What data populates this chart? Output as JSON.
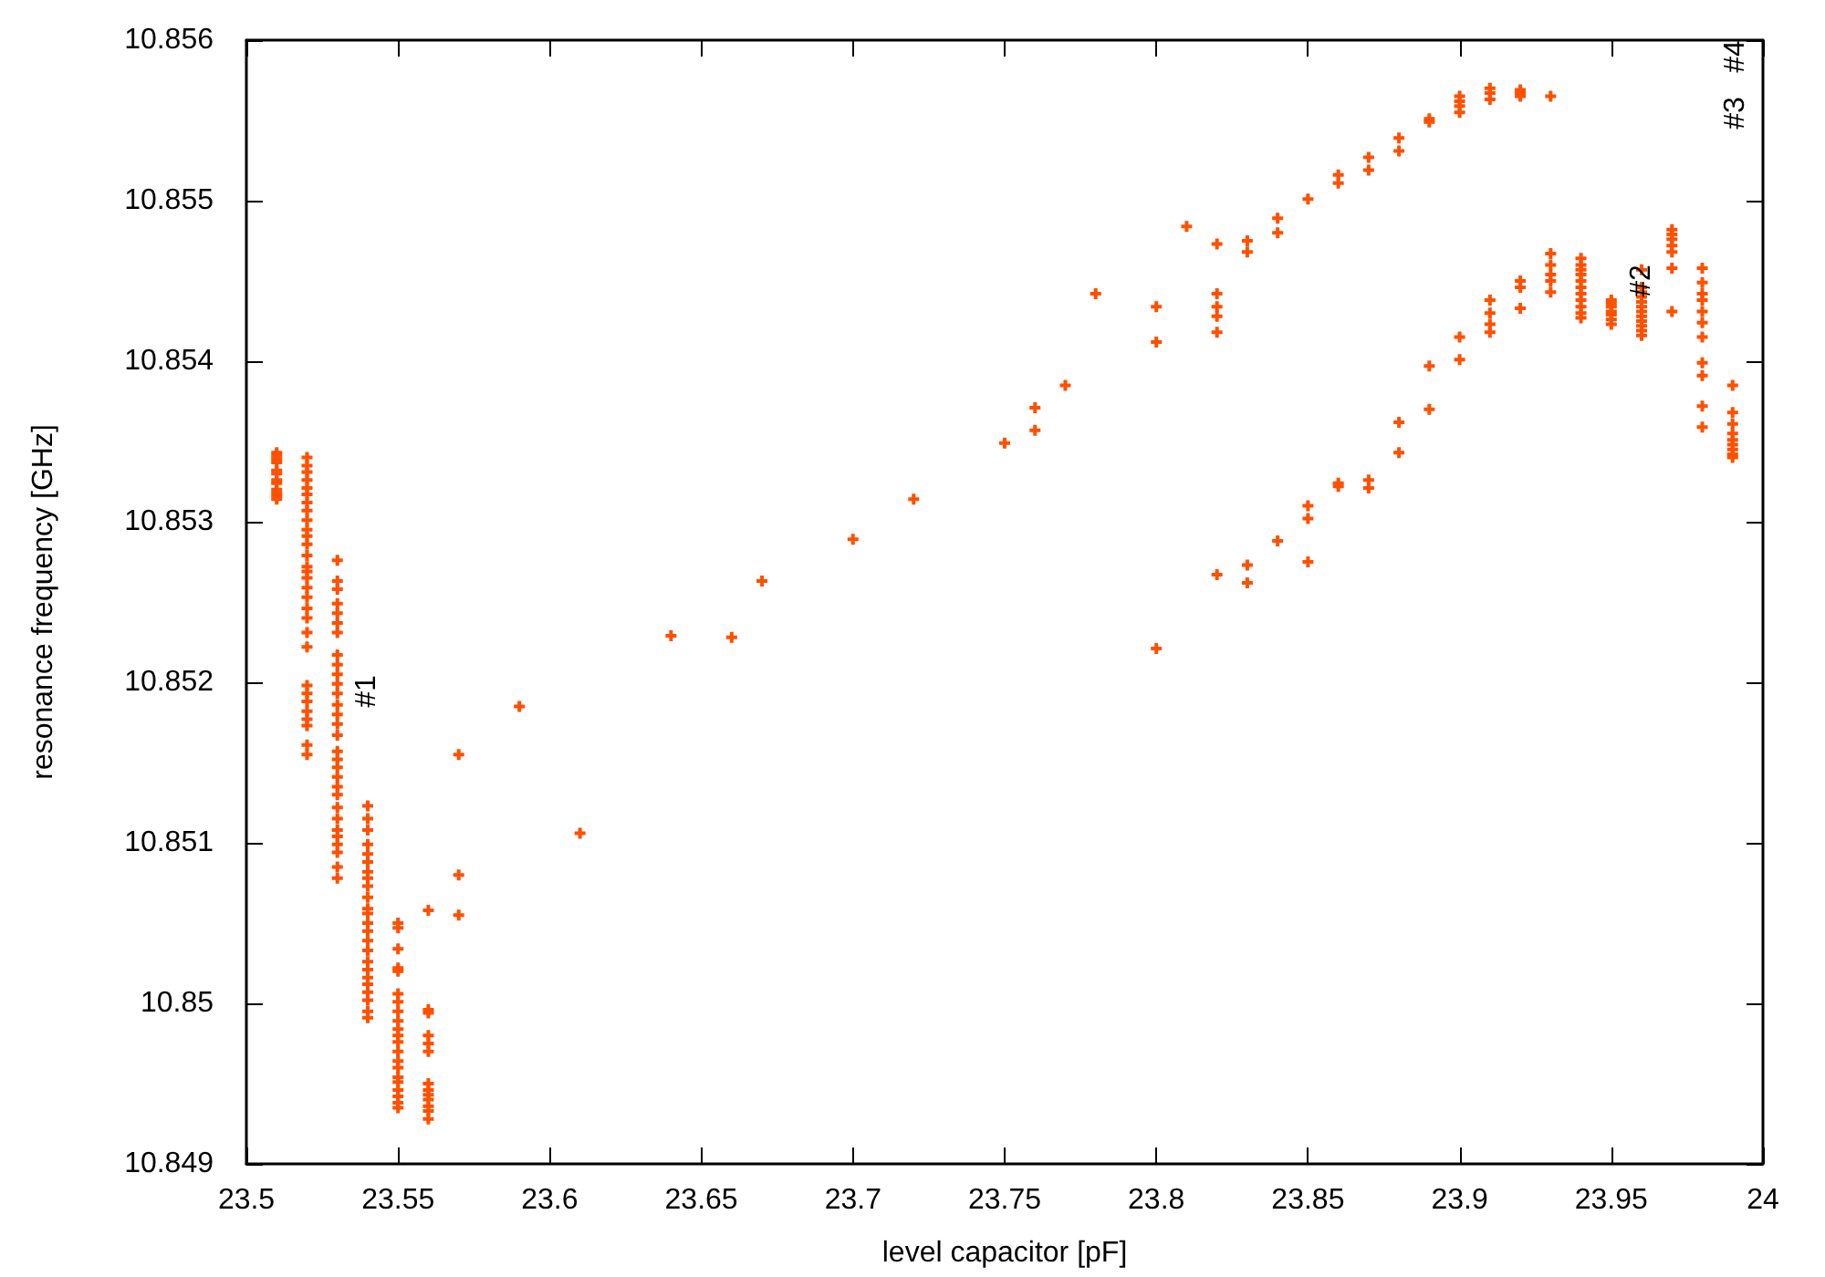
{
  "chart_data": {
    "type": "scatter",
    "xlabel": "level capacitor [pF]",
    "ylabel": "resonance frequency [GHz]",
    "color": "#ff5000",
    "marker": "cross",
    "xlim": [
      23.5,
      24
    ],
    "xticks": [
      23.5,
      23.55,
      23.6,
      23.65,
      23.7,
      23.75,
      23.8,
      23.85,
      23.9,
      23.95,
      24
    ],
    "ylim": [
      10.849,
      10.856
    ],
    "yticks": [
      10.849,
      10.85,
      10.851,
      10.852,
      10.853,
      10.854,
      10.855,
      10.856
    ],
    "annotations": [
      "#1",
      {
        "text": "#2",
        "x": 23.96,
        "y": 10.8545
      },
      "#3",
      "#4"
    ],
    "x": [
      23.51,
      23.51,
      23.51,
      23.51,
      23.51,
      23.51,
      23.51,
      23.51,
      23.51,
      23.51,
      23.51,
      23.51,
      23.52,
      23.52,
      23.52,
      23.52,
      23.52,
      23.52,
      23.52,
      23.52,
      23.52,
      23.52,
      23.52,
      23.52,
      23.52,
      23.52,
      23.52,
      23.52,
      23.52,
      23.52,
      23.52,
      23.52,
      23.52,
      23.52,
      23.52,
      23.52,
      23.52,
      23.52,
      23.52,
      23.52,
      23.52,
      23.52,
      23.53,
      23.53,
      23.53,
      23.53,
      23.53,
      23.53,
      23.53,
      23.53,
      23.53,
      23.53,
      23.53,
      23.53,
      23.53,
      23.53,
      23.53,
      23.53,
      23.53,
      23.53,
      23.53,
      23.53,
      23.53,
      23.53,
      23.53,
      23.53,
      23.53,
      23.53,
      23.53,
      23.53,
      23.53,
      23.53,
      23.54,
      23.54,
      23.54,
      23.54,
      23.54,
      23.54,
      23.54,
      23.54,
      23.54,
      23.54,
      23.54,
      23.54,
      23.54,
      23.54,
      23.54,
      23.54,
      23.54,
      23.54,
      23.54,
      23.54,
      23.54,
      23.54,
      23.54,
      23.54,
      23.55,
      23.55,
      23.55,
      23.55,
      23.55,
      23.55,
      23.55,
      23.55,
      23.55,
      23.55,
      23.55,
      23.55,
      23.55,
      23.55,
      23.55,
      23.55,
      23.55,
      23.55,
      23.55,
      23.55,
      23.55,
      23.56,
      23.56,
      23.56,
      23.56,
      23.56,
      23.56,
      23.56,
      23.56,
      23.56,
      23.56,
      23.56,
      23.56,
      23.56,
      23.57,
      23.57,
      23.57,
      23.59,
      23.61,
      23.64,
      23.66,
      23.67,
      23.7,
      23.72,
      23.75,
      23.76,
      23.76,
      23.77,
      23.78,
      23.8,
      23.8,
      23.8,
      23.81,
      23.82,
      23.82,
      23.82,
      23.82,
      23.82,
      23.82,
      23.83,
      23.83,
      23.83,
      23.83,
      23.84,
      23.84,
      23.84,
      23.85,
      23.85,
      23.85,
      23.85,
      23.86,
      23.86,
      23.86,
      23.86,
      23.87,
      23.87,
      23.87,
      23.87,
      23.88,
      23.88,
      23.88,
      23.88,
      23.89,
      23.89,
      23.89,
      23.89,
      23.9,
      23.9,
      23.9,
      23.9,
      23.9,
      23.9,
      23.91,
      23.91,
      23.91,
      23.91,
      23.91,
      23.91,
      23.91,
      23.92,
      23.92,
      23.92,
      23.92,
      23.92,
      23.92,
      23.93,
      23.93,
      23.93,
      23.93,
      23.93,
      23.93,
      23.94,
      23.94,
      23.94,
      23.94,
      23.94,
      23.94,
      23.94,
      23.94,
      23.94,
      23.94,
      23.94,
      23.95,
      23.95,
      23.95,
      23.95,
      23.95,
      23.95,
      23.95,
      23.96,
      23.96,
      23.96,
      23.96,
      23.96,
      23.96,
      23.96,
      23.96,
      23.96,
      23.96,
      23.96,
      23.96,
      23.97,
      23.97,
      23.97,
      23.97,
      23.97,
      23.97,
      23.97,
      23.98,
      23.98,
      23.98,
      23.98,
      23.98,
      23.98,
      23.98,
      23.98,
      23.98,
      23.98,
      23.98,
      23.99,
      23.99,
      23.99,
      23.99,
      23.99,
      23.99,
      23.99,
      23.99,
      23.99
    ],
    "values": [
      10.85343,
      10.85341,
      10.85339,
      10.85337,
      10.85332,
      10.8533,
      10.85326,
      10.85324,
      10.8532,
      10.85318,
      10.85316,
      10.85314,
      10.8534,
      10.85335,
      10.85331,
      10.85326,
      10.85321,
      10.85317,
      10.85312,
      10.85307,
      10.85301,
      10.85295,
      10.85291,
      10.85286,
      10.85279,
      10.85272,
      10.85269,
      10.85265,
      10.85259,
      10.85253,
      10.85246,
      10.8524,
      10.85231,
      10.85222,
      10.85198,
      10.85193,
      10.85188,
      10.85182,
      10.85177,
      10.85173,
      10.85161,
      10.85155,
      10.85276,
      10.85263,
      10.85258,
      10.85249,
      10.85243,
      10.85237,
      10.85231,
      10.85217,
      10.85211,
      10.85205,
      10.85199,
      10.85193,
      10.85186,
      10.8518,
      10.85174,
      10.85167,
      10.85157,
      10.85152,
      10.85147,
      10.85141,
      10.85135,
      10.8513,
      10.85122,
      10.85115,
      10.85108,
      10.85104,
      10.85099,
      10.85094,
      10.85085,
      10.85078,
      10.85123,
      10.85115,
      10.85108,
      10.85099,
      10.85093,
      10.85088,
      10.85082,
      10.85078,
      10.85073,
      10.85066,
      10.85059,
      10.85056,
      10.8505,
      10.85045,
      10.85039,
      10.85033,
      10.85026,
      10.85021,
      10.85016,
      10.85012,
      10.85007,
      10.85002,
      10.84995,
      10.84991,
      10.8505,
      10.85047,
      10.85034,
      10.85022,
      10.8502,
      10.85006,
      10.85001,
      10.84995,
      10.84989,
      10.84984,
      10.8498,
      10.84976,
      10.8497,
      10.84964,
      10.8496,
      10.84954,
      10.84951,
      10.84946,
      10.84942,
      10.84938,
      10.84935,
      10.85058,
      10.84996,
      10.84994,
      10.8498,
      10.84975,
      10.8497,
      10.8495,
      10.84946,
      10.84943,
      10.8494,
      10.84936,
      10.84933,
      10.84928,
      10.85155,
      10.8508,
      10.85055,
      10.85185,
      10.85106,
      10.85229,
      10.85228,
      10.85263,
      10.85289,
      10.85314,
      10.85349,
      10.85357,
      10.85371,
      10.85385,
      10.85442,
      10.85434,
      10.85412,
      10.85221,
      10.85484,
      10.85473,
      10.85442,
      10.85434,
      10.85428,
      10.85418,
      10.85267,
      10.85475,
      10.85468,
      10.85273,
      10.85262,
      10.85489,
      10.8548,
      10.85288,
      10.85501,
      10.8531,
      10.85302,
      10.85275,
      10.85516,
      10.85511,
      10.85324,
      10.85322,
      10.85527,
      10.85519,
      10.85326,
      10.85321,
      10.85539,
      10.85531,
      10.85362,
      10.85343,
      10.85551,
      10.85549,
      10.85397,
      10.8537,
      10.85565,
      10.85562,
      10.85559,
      10.85555,
      10.85415,
      10.85401,
      10.8557,
      10.85567,
      10.85563,
      10.85438,
      10.8543,
      10.85423,
      10.85418,
      10.85569,
      10.85567,
      10.85565,
      10.8545,
      10.85446,
      10.85433,
      10.85565,
      10.85467,
      10.8546,
      10.85454,
      10.8545,
      10.85443,
      10.85464,
      10.8546,
      10.85457,
      10.85454,
      10.8545,
      10.85446,
      10.85442,
      10.85438,
      10.85434,
      10.8543,
      10.85427,
      10.85438,
      10.85436,
      10.85434,
      10.85431,
      10.85429,
      10.85426,
      10.85423,
      10.85457,
      10.85446,
      10.85443,
      10.8544,
      10.85437,
      10.85434,
      10.85431,
      10.85428,
      10.85425,
      10.85422,
      10.85419,
      10.85416,
      10.85482,
      10.85479,
      10.85476,
      10.85472,
      10.85468,
      10.85458,
      10.85431,
      10.85458,
      10.85449,
      10.85442,
      10.85438,
      10.85431,
      10.85424,
      10.85415,
      10.85399,
      10.85391,
      10.85372,
      10.85359,
      10.85385,
      10.85368,
      10.85361,
      10.85355,
      10.85351,
      10.85348,
      10.85345,
      10.85342,
      10.8534
    ]
  }
}
